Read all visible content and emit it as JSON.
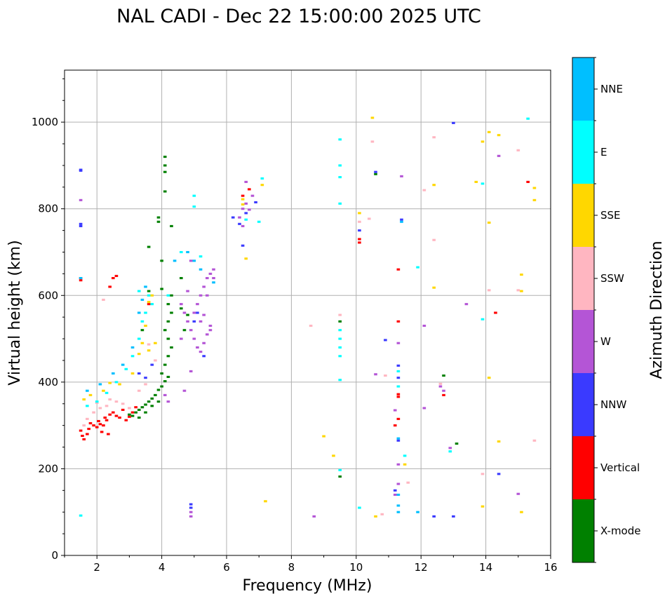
{
  "chart_data": {
    "type": "scatter",
    "title": "NAL CADI - Dec 22 15:00:00 2025 UTC",
    "xlabel": "Frequency (MHz)",
    "ylabel": "Virtual height (km)",
    "xlim": [
      1,
      16
    ],
    "ylim": [
      0,
      1120
    ],
    "xticks": [
      2,
      4,
      6,
      8,
      10,
      12,
      14,
      16
    ],
    "yticks": [
      0,
      200,
      400,
      600,
      800,
      1000
    ],
    "grid": true,
    "colorbar": {
      "label": "Azimuth Direction",
      "position": "right",
      "categories": [
        {
          "name": "X-mode",
          "color": "#008000"
        },
        {
          "name": "Vertical",
          "color": "#ff0000"
        },
        {
          "name": "NNW",
          "color": "#3a3aff"
        },
        {
          "name": "W",
          "color": "#b455d6"
        },
        {
          "name": "SSW",
          "color": "#ffb6c1"
        },
        {
          "name": "SSE",
          "color": "#ffd700"
        },
        {
          "name": "E",
          "color": "#00ffff"
        },
        {
          "name": "NNE",
          "color": "#00bfff"
        }
      ]
    },
    "series": [
      {
        "name": "Vertical",
        "points": [
          [
            1.5,
            288
          ],
          [
            1.55,
            276
          ],
          [
            1.6,
            268
          ],
          [
            1.7,
            280
          ],
          [
            1.75,
            292
          ],
          [
            1.8,
            305
          ],
          [
            1.9,
            300
          ],
          [
            2.0,
            296
          ],
          [
            2.05,
            310
          ],
          [
            2.1,
            303
          ],
          [
            2.2,
            300
          ],
          [
            2.25,
            318
          ],
          [
            2.3,
            312
          ],
          [
            2.4,
            325
          ],
          [
            2.5,
            330
          ],
          [
            2.6,
            322
          ],
          [
            2.7,
            318
          ],
          [
            2.8,
            336
          ],
          [
            2.9,
            312
          ],
          [
            3.0,
            320
          ],
          [
            3.1,
            330
          ],
          [
            3.2,
            342
          ],
          [
            2.15,
            285
          ],
          [
            2.35,
            280
          ],
          [
            1.5,
            640
          ],
          [
            1.5,
            635
          ],
          [
            2.4,
            620
          ],
          [
            2.5,
            640
          ],
          [
            2.6,
            645
          ],
          [
            3.6,
            580
          ],
          [
            6.5,
            830
          ],
          [
            6.7,
            845
          ],
          [
            10.1,
            730
          ],
          [
            10.1,
            722
          ],
          [
            11.3,
            660
          ],
          [
            11.3,
            540
          ],
          [
            11.3,
            372
          ],
          [
            11.3,
            366
          ],
          [
            11.2,
            300
          ],
          [
            11.3,
            315
          ],
          [
            12.7,
            370
          ],
          [
            15.3,
            862
          ],
          [
            14.3,
            560
          ]
        ]
      },
      {
        "name": "X-mode",
        "points": [
          [
            3.0,
            325
          ],
          [
            3.1,
            322
          ],
          [
            3.2,
            330
          ],
          [
            3.3,
            336
          ],
          [
            3.4,
            342
          ],
          [
            3.5,
            348
          ],
          [
            3.6,
            355
          ],
          [
            3.7,
            362
          ],
          [
            3.8,
            370
          ],
          [
            3.9,
            382
          ],
          [
            4.0,
            390
          ],
          [
            4.1,
            402
          ],
          [
            4.2,
            412
          ],
          [
            3.3,
            318
          ],
          [
            3.5,
            330
          ],
          [
            3.7,
            345
          ],
          [
            3.9,
            355
          ],
          [
            4.0,
            420
          ],
          [
            4.1,
            440
          ],
          [
            4.2,
            460
          ],
          [
            4.3,
            480
          ],
          [
            4.2,
            500
          ],
          [
            4.1,
            520
          ],
          [
            4.2,
            540
          ],
          [
            4.3,
            560
          ],
          [
            4.2,
            580
          ],
          [
            4.3,
            600
          ],
          [
            4.0,
            615
          ],
          [
            4.1,
            900
          ],
          [
            4.1,
            920
          ],
          [
            4.1,
            885
          ],
          [
            4.1,
            840
          ],
          [
            4.3,
            760
          ],
          [
            3.9,
            780
          ],
          [
            3.9,
            770
          ],
          [
            3.6,
            712
          ],
          [
            4.0,
            680
          ],
          [
            4.6,
            640
          ],
          [
            4.6,
            570
          ],
          [
            4.8,
            555
          ],
          [
            4.7,
            520
          ],
          [
            3.6,
            610
          ],
          [
            3.4,
            520
          ],
          [
            9.5,
            540
          ],
          [
            9.5,
            182
          ],
          [
            10.6,
            880
          ],
          [
            12.7,
            415
          ],
          [
            13.1,
            258
          ]
        ]
      },
      {
        "name": "NNW",
        "points": [
          [
            1.5,
            765
          ],
          [
            1.5,
            760
          ],
          [
            1.5,
            888
          ],
          [
            1.5,
            890
          ],
          [
            3.3,
            420
          ],
          [
            3.5,
            410
          ],
          [
            3.7,
            440
          ],
          [
            4.9,
            110
          ],
          [
            4.9,
            118
          ],
          [
            5.3,
            460
          ],
          [
            5.0,
            540
          ],
          [
            5.1,
            560
          ],
          [
            6.2,
            780
          ],
          [
            6.4,
            765
          ],
          [
            6.5,
            715
          ],
          [
            6.6,
            790
          ],
          [
            6.9,
            815
          ],
          [
            10.6,
            885
          ],
          [
            10.1,
            750
          ],
          [
            10.9,
            497
          ],
          [
            11.3,
            438
          ],
          [
            11.3,
            410
          ],
          [
            11.2,
            150
          ],
          [
            11.3,
            265
          ],
          [
            13.0,
            998
          ],
          [
            13.0,
            90
          ],
          [
            14.4,
            188
          ],
          [
            12.4,
            90
          ],
          [
            11.4,
            775
          ]
        ]
      },
      {
        "name": "W",
        "points": [
          [
            1.5,
            820
          ],
          [
            4.9,
            90
          ],
          [
            4.9,
            100
          ],
          [
            4.6,
            580
          ],
          [
            4.7,
            560
          ],
          [
            4.8,
            540
          ],
          [
            4.9,
            520
          ],
          [
            5.0,
            500
          ],
          [
            5.1,
            480
          ],
          [
            5.2,
            470
          ],
          [
            5.3,
            490
          ],
          [
            5.4,
            510
          ],
          [
            5.5,
            530
          ],
          [
            5.0,
            560
          ],
          [
            5.1,
            580
          ],
          [
            5.2,
            600
          ],
          [
            5.3,
            620
          ],
          [
            5.4,
            640
          ],
          [
            5.5,
            650
          ],
          [
            5.6,
            640
          ],
          [
            5.6,
            660
          ],
          [
            5.4,
            600
          ],
          [
            4.9,
            680
          ],
          [
            4.7,
            380
          ],
          [
            4.2,
            355
          ],
          [
            4.1,
            370
          ],
          [
            4.9,
            425
          ],
          [
            4.8,
            610
          ],
          [
            4.6,
            500
          ],
          [
            5.2,
            540
          ],
          [
            5.5,
            520
          ],
          [
            5.3,
            555
          ],
          [
            6.5,
            800
          ],
          [
            6.6,
            812
          ],
          [
            6.4,
            780
          ],
          [
            6.5,
            760
          ],
          [
            6.7,
            798
          ],
          [
            6.8,
            830
          ],
          [
            6.6,
            862
          ],
          [
            8.7,
            90
          ],
          [
            10.6,
            418
          ],
          [
            11.3,
            490
          ],
          [
            11.3,
            210
          ],
          [
            11.3,
            165
          ],
          [
            11.2,
            140
          ],
          [
            11.2,
            335
          ],
          [
            12.1,
            340
          ],
          [
            12.6,
            390
          ],
          [
            12.7,
            380
          ],
          [
            12.1,
            530
          ],
          [
            13.4,
            580
          ],
          [
            14.4,
            922
          ],
          [
            15.0,
            142
          ],
          [
            12.9,
            248
          ],
          [
            11.4,
            875
          ]
        ]
      },
      {
        "name": "SSW",
        "points": [
          [
            1.6,
            300
          ],
          [
            1.7,
            315
          ],
          [
            1.9,
            330
          ],
          [
            2.0,
            352
          ],
          [
            2.1,
            340
          ],
          [
            2.3,
            345
          ],
          [
            2.4,
            360
          ],
          [
            2.6,
            355
          ],
          [
            2.8,
            350
          ],
          [
            3.0,
            340
          ],
          [
            3.3,
            380
          ],
          [
            3.5,
            395
          ],
          [
            3.6,
            487
          ],
          [
            3.8,
            450
          ],
          [
            2.2,
            590
          ],
          [
            8.6,
            530
          ],
          [
            9.5,
            555
          ],
          [
            10.1,
            770
          ],
          [
            10.4,
            777
          ],
          [
            10.5,
            955
          ],
          [
            10.8,
            95
          ],
          [
            11.6,
            168
          ],
          [
            12.1,
            843
          ],
          [
            12.4,
            965
          ],
          [
            12.4,
            728
          ],
          [
            12.6,
            396
          ],
          [
            14.1,
            612
          ],
          [
            13.9,
            188
          ],
          [
            15.0,
            935
          ],
          [
            15.5,
            265
          ],
          [
            15.0,
            612
          ],
          [
            10.9,
            415
          ]
        ]
      },
      {
        "name": "SSE",
        "points": [
          [
            1.6,
            360
          ],
          [
            1.8,
            370
          ],
          [
            2.2,
            380
          ],
          [
            2.4,
            398
          ],
          [
            2.7,
            395
          ],
          [
            3.1,
            420
          ],
          [
            3.3,
            465
          ],
          [
            3.4,
            490
          ],
          [
            3.5,
            530
          ],
          [
            3.6,
            585
          ],
          [
            3.7,
            600
          ],
          [
            3.8,
            490
          ],
          [
            3.6,
            473
          ],
          [
            6.5,
            810
          ],
          [
            6.5,
            822
          ],
          [
            6.6,
            685
          ],
          [
            7.1,
            855
          ],
          [
            7.2,
            125
          ],
          [
            9.0,
            275
          ],
          [
            9.3,
            230
          ],
          [
            10.1,
            790
          ],
          [
            10.5,
            1010
          ],
          [
            10.6,
            90
          ],
          [
            11.5,
            210
          ],
          [
            12.4,
            855
          ],
          [
            12.4,
            618
          ],
          [
            13.7,
            862
          ],
          [
            13.9,
            955
          ],
          [
            14.1,
            977
          ],
          [
            14.1,
            768
          ],
          [
            14.4,
            263
          ],
          [
            14.4,
            970
          ],
          [
            15.1,
            648
          ],
          [
            15.1,
            610
          ],
          [
            15.5,
            848
          ],
          [
            15.5,
            820
          ],
          [
            15.1,
            100
          ],
          [
            13.9,
            113
          ],
          [
            14.1,
            410
          ]
        ]
      },
      {
        "name": "E",
        "points": [
          [
            1.5,
            92
          ],
          [
            1.7,
            345
          ],
          [
            2.0,
            355
          ],
          [
            2.3,
            375
          ],
          [
            2.6,
            400
          ],
          [
            2.9,
            430
          ],
          [
            3.1,
            460
          ],
          [
            3.3,
            500
          ],
          [
            3.4,
            540
          ],
          [
            3.5,
            560
          ],
          [
            3.6,
            600
          ],
          [
            3.7,
            580
          ],
          [
            3.3,
            610
          ],
          [
            4.2,
            600
          ],
          [
            4.6,
            700
          ],
          [
            5.2,
            690
          ],
          [
            5.0,
            830
          ],
          [
            5.0,
            805
          ],
          [
            6.6,
            775
          ],
          [
            7.0,
            770
          ],
          [
            7.1,
            870
          ],
          [
            9.5,
            960
          ],
          [
            9.5,
            900
          ],
          [
            9.5,
            873
          ],
          [
            9.5,
            812
          ],
          [
            9.5,
            520
          ],
          [
            9.5,
            500
          ],
          [
            9.5,
            480
          ],
          [
            9.5,
            460
          ],
          [
            9.5,
            405
          ],
          [
            9.5,
            197
          ],
          [
            10.1,
            110
          ],
          [
            11.3,
            390
          ],
          [
            11.5,
            230
          ],
          [
            11.9,
            665
          ],
          [
            12.9,
            240
          ],
          [
            13.9,
            858
          ],
          [
            13.9,
            545
          ],
          [
            15.3,
            1008
          ],
          [
            11.3,
            425
          ]
        ]
      },
      {
        "name": "NNE",
        "points": [
          [
            1.5,
            640
          ],
          [
            1.7,
            380
          ],
          [
            2.1,
            395
          ],
          [
            2.5,
            420
          ],
          [
            2.8,
            440
          ],
          [
            3.1,
            480
          ],
          [
            3.3,
            560
          ],
          [
            3.4,
            590
          ],
          [
            3.5,
            620
          ],
          [
            4.4,
            680
          ],
          [
            4.8,
            700
          ],
          [
            5.0,
            680
          ],
          [
            5.2,
            660
          ],
          [
            5.6,
            630
          ],
          [
            11.3,
            140
          ],
          [
            11.3,
            100
          ],
          [
            11.3,
            115
          ],
          [
            11.3,
            270
          ],
          [
            11.9,
            100
          ],
          [
            11.4,
            770
          ]
        ]
      }
    ]
  }
}
